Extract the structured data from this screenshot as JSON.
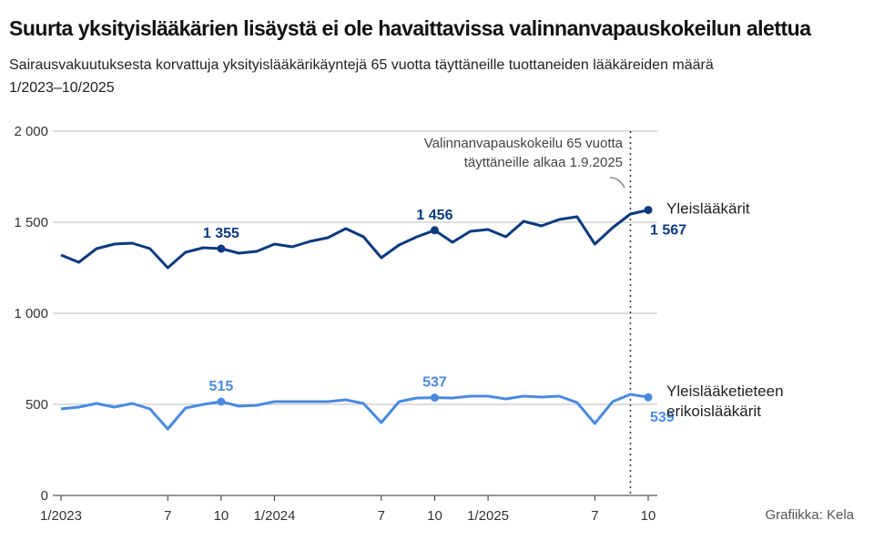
{
  "title": "Suurta yksityislääkärien lisäystä ei ole havaittavissa valinnanvapauskokeilun alettua",
  "subtitle": "Sairausvakuutuksesta korvattuja yksityislääkärikäyntejä 65 vuotta täyttäneille tuottaneiden lääkäreiden määrä",
  "period": "1/2023–10/2025",
  "credit": "Grafiikka: Kela",
  "chart_data": {
    "type": "line",
    "ylim": [
      0,
      2000
    ],
    "yticks": [
      0,
      500,
      1000,
      1500,
      2000
    ],
    "ytick_labels": [
      "0",
      "500",
      "1 000",
      "1 500",
      "2 000"
    ],
    "grid": "horizontal",
    "x": [
      "1/2023",
      "2/2023",
      "3/2023",
      "4/2023",
      "5/2023",
      "6/2023",
      "7/2023",
      "8/2023",
      "9/2023",
      "10/2023",
      "11/2023",
      "12/2023",
      "1/2024",
      "2/2024",
      "3/2024",
      "4/2024",
      "5/2024",
      "6/2024",
      "7/2024",
      "8/2024",
      "9/2024",
      "10/2024",
      "11/2024",
      "12/2024",
      "1/2025",
      "2/2025",
      "3/2025",
      "4/2025",
      "5/2025",
      "6/2025",
      "7/2025",
      "8/2025",
      "9/2025",
      "10/2025"
    ],
    "xtick_labels": [
      {
        "i": 0,
        "label": "1/2023"
      },
      {
        "i": 6,
        "label": "7"
      },
      {
        "i": 9,
        "label": "10"
      },
      {
        "i": 12,
        "label": "1/2024"
      },
      {
        "i": 18,
        "label": "7"
      },
      {
        "i": 21,
        "label": "10"
      },
      {
        "i": 24,
        "label": "1/2025"
      },
      {
        "i": 30,
        "label": "7"
      },
      {
        "i": 33,
        "label": "10"
      }
    ],
    "series": [
      {
        "name": "Yleislääkärit",
        "color": "#0b3a7e",
        "values": [
          1320,
          1280,
          1355,
          1380,
          1385,
          1355,
          1250,
          1335,
          1360,
          1355,
          1330,
          1340,
          1380,
          1365,
          1395,
          1415,
          1465,
          1420,
          1305,
          1375,
          1420,
          1456,
          1390,
          1450,
          1460,
          1420,
          1505,
          1480,
          1515,
          1530,
          1380,
          1470,
          1545,
          1567
        ],
        "labels": [
          {
            "i": 9,
            "text": "1 355"
          },
          {
            "i": 21,
            "text": "1 456"
          },
          {
            "i": 33,
            "text": "1 567"
          }
        ]
      },
      {
        "name": "Yleislääketieteen erikoislääkärit",
        "name_lines": [
          "Yleislääketieteen",
          "erikoislääkärit"
        ],
        "color": "#4a8ae0",
        "values": [
          475,
          485,
          505,
          485,
          505,
          475,
          365,
          480,
          500,
          515,
          490,
          495,
          515,
          515,
          515,
          515,
          525,
          505,
          400,
          515,
          535,
          537,
          535,
          545,
          545,
          530,
          545,
          540,
          545,
          510,
          395,
          515,
          555,
          539
        ],
        "labels": [
          {
            "i": 9,
            "text": "515"
          },
          {
            "i": 21,
            "text": "537"
          },
          {
            "i": 33,
            "text": "539"
          }
        ]
      }
    ],
    "annotation": {
      "at": "9/2025",
      "lines": [
        "Valinnanvapauskokeilu 65 vuotta",
        "täyttäneille alkaa 1.9.2025"
      ]
    }
  }
}
